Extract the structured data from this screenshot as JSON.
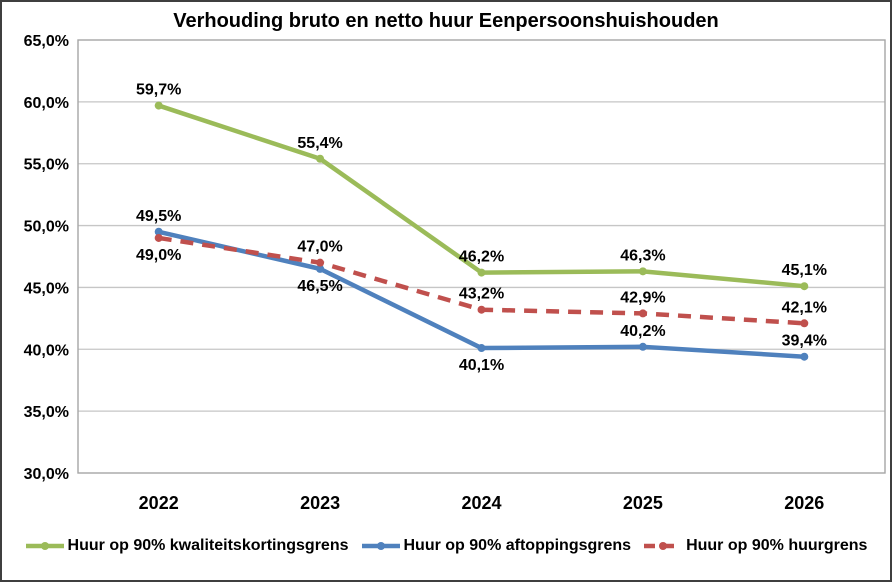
{
  "chart_data": {
    "type": "line",
    "title": "Verhouding bruto en netto huur Eenpersoonshuishouden",
    "categories": [
      "2022",
      "2023",
      "2024",
      "2025",
      "2026"
    ],
    "y_axis": {
      "min": 30,
      "max": 65,
      "step": 5,
      "tick_labels": [
        "30,0%",
        "35,0%",
        "40,0%",
        "45,0%",
        "50,0%",
        "55,0%",
        "60,0%",
        "65,0%"
      ]
    },
    "grid": "horizontal",
    "legend_position": "bottom",
    "colors": {
      "grid_line": "#c6c6c6",
      "plot_border": "#a6a6a6",
      "frame_border": "#3f3f3f",
      "text": "#000000"
    },
    "series": [
      {
        "name": "Huur op 90% kwaliteitskortingsgrens",
        "color": "#9bbb59",
        "style": "solid",
        "values": [
          59.7,
          55.4,
          46.2,
          46.3,
          45.1
        ],
        "labels": [
          "59,7%",
          "55,4%",
          "46,2%",
          "46,3%",
          "45,1%"
        ],
        "label_positions": [
          "above",
          "above",
          "above",
          "above",
          "above"
        ]
      },
      {
        "name": "Huur op 90% aftoppingsgrens",
        "color": "#4f81bd",
        "style": "solid",
        "values": [
          49.5,
          46.5,
          40.1,
          40.2,
          39.4
        ],
        "labels": [
          "49,5%",
          "46,5%",
          "40,1%",
          "40,2%",
          "39,4%"
        ],
        "label_positions": [
          "above",
          "below",
          "below",
          "above",
          "above"
        ]
      },
      {
        "name": "Huur op 90% huurgrens",
        "color": "#c0504d",
        "style": "dashed",
        "values": [
          49.0,
          47.0,
          43.2,
          42.9,
          42.1
        ],
        "labels": [
          "49,0%",
          "47,0%",
          "43,2%",
          "42,9%",
          "42,1%"
        ],
        "label_positions": [
          "below",
          "above",
          "above",
          "above",
          "above"
        ]
      }
    ]
  }
}
